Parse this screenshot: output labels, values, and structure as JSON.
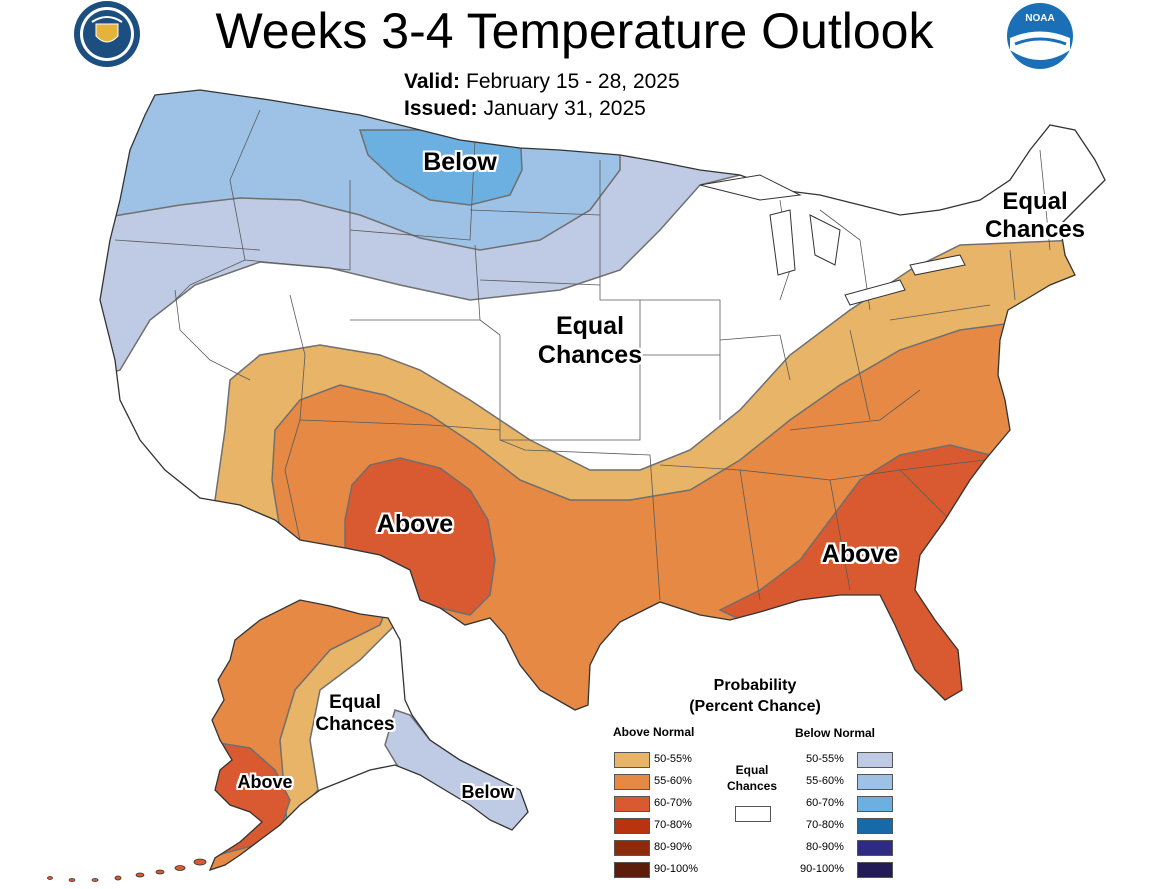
{
  "header": {
    "title": "Weeks 3-4 Temperature Outlook",
    "valid_label": "Valid:",
    "valid_value": "February 15 - 28, 2025",
    "issued_label": "Issued:",
    "issued_value": "January 31, 2025"
  },
  "logos": {
    "commerce": "Department of Commerce seal",
    "noaa_text": "NOAA"
  },
  "map_labels": {
    "below_north": "Below",
    "equal_center_1": "Equal",
    "equal_center_2": "Chances",
    "equal_ne_1": "Equal",
    "equal_ne_2": "Chances",
    "above_sw": "Above",
    "above_se": "Above",
    "equal_ak_1": "Equal",
    "equal_ak_2": "Chances",
    "above_ak": "Above",
    "below_ak": "Below"
  },
  "legend": {
    "title_1": "Probability",
    "title_2": "(Percent Chance)",
    "above_header": "Above Normal",
    "below_header": "Below Normal",
    "equal_1": "Equal",
    "equal_2": "Chances",
    "above": [
      {
        "label": "50-55%",
        "color": "#e8b468"
      },
      {
        "label": "55-60%",
        "color": "#e58945"
      },
      {
        "label": "60-70%",
        "color": "#d95a30"
      },
      {
        "label": "70-80%",
        "color": "#b8330e"
      },
      {
        "label": "80-90%",
        "color": "#8e2a0c"
      },
      {
        "label": "90-100%",
        "color": "#5c1e0a"
      }
    ],
    "below": [
      {
        "label": "50-55%",
        "color": "#bfcbe4"
      },
      {
        "label": "55-60%",
        "color": "#9ec2e5"
      },
      {
        "label": "60-70%",
        "color": "#6cb0e2"
      },
      {
        "label": "70-80%",
        "color": "#1769a8"
      },
      {
        "label": "80-90%",
        "color": "#2e2b84"
      },
      {
        "label": "90-100%",
        "color": "#221b55"
      }
    ],
    "equal_color": "#ffffff"
  }
}
